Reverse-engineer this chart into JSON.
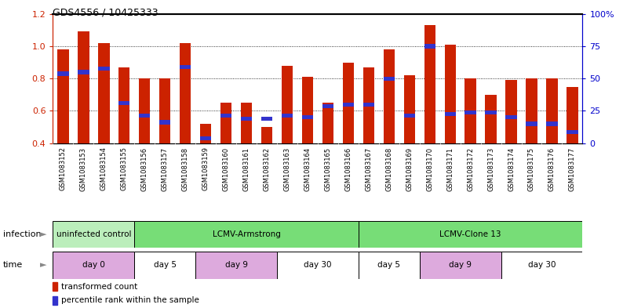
{
  "title": "GDS4556 / 10425333",
  "samples": [
    "GSM1083152",
    "GSM1083153",
    "GSM1083154",
    "GSM1083155",
    "GSM1083156",
    "GSM1083157",
    "GSM1083158",
    "GSM1083159",
    "GSM1083160",
    "GSM1083161",
    "GSM1083162",
    "GSM1083163",
    "GSM1083164",
    "GSM1083165",
    "GSM1083166",
    "GSM1083167",
    "GSM1083168",
    "GSM1083169",
    "GSM1083170",
    "GSM1083171",
    "GSM1083172",
    "GSM1083173",
    "GSM1083174",
    "GSM1083175",
    "GSM1083176",
    "GSM1083177"
  ],
  "red_values": [
    0.98,
    1.09,
    1.02,
    0.87,
    0.8,
    0.8,
    1.02,
    0.52,
    0.65,
    0.65,
    0.5,
    0.88,
    0.81,
    0.65,
    0.9,
    0.87,
    0.98,
    0.82,
    1.13,
    1.01,
    0.8,
    0.7,
    0.79,
    0.8,
    0.8,
    0.75
  ],
  "blue_values": [
    0.83,
    0.84,
    0.86,
    0.65,
    0.57,
    0.53,
    0.87,
    0.43,
    0.57,
    0.55,
    0.55,
    0.57,
    0.56,
    0.63,
    0.64,
    0.64,
    0.8,
    0.57,
    1.0,
    0.58,
    0.59,
    0.59,
    0.56,
    0.52,
    0.52,
    0.47
  ],
  "ylim": [
    0.4,
    1.2
  ],
  "y_left_ticks": [
    0.4,
    0.6,
    0.8,
    1.0,
    1.2
  ],
  "y_right_ticks": [
    0,
    25,
    50,
    75,
    100
  ],
  "y_right_tick_labels": [
    "0",
    "25",
    "50",
    "75",
    "100%"
  ],
  "bar_color": "#cc2200",
  "blue_color": "#3333cc",
  "bar_bottom": 0.4,
  "bar_width": 0.55,
  "fig_bg_color": "#ffffff",
  "plot_bg_color": "#ffffff",
  "tick_label_area_color": "#cccccc",
  "tick_color_left": "#cc2200",
  "tick_color_right": "#0000cc",
  "inf_groups": [
    {
      "label": "uninfected control",
      "start": 0,
      "end": 4,
      "color": "#bbeebb"
    },
    {
      "label": "LCMV-Armstrong",
      "start": 4,
      "end": 15,
      "color": "#77dd77"
    },
    {
      "label": "LCMV-Clone 13",
      "start": 15,
      "end": 26,
      "color": "#77dd77"
    }
  ],
  "time_groups": [
    {
      "label": "day 0",
      "start": 0,
      "end": 4,
      "color": "#ddaadd"
    },
    {
      "label": "day 5",
      "start": 4,
      "end": 7,
      "color": "#ffffff"
    },
    {
      "label": "day 9",
      "start": 7,
      "end": 11,
      "color": "#ddaadd"
    },
    {
      "label": "day 30",
      "start": 11,
      "end": 15,
      "color": "#ffffff"
    },
    {
      "label": "day 5",
      "start": 15,
      "end": 18,
      "color": "#ffffff"
    },
    {
      "label": "day 9",
      "start": 18,
      "end": 22,
      "color": "#ddaadd"
    },
    {
      "label": "day 30",
      "start": 22,
      "end": 26,
      "color": "#ffffff"
    }
  ],
  "legend_red": "transformed count",
  "legend_blue": "percentile rank within the sample"
}
